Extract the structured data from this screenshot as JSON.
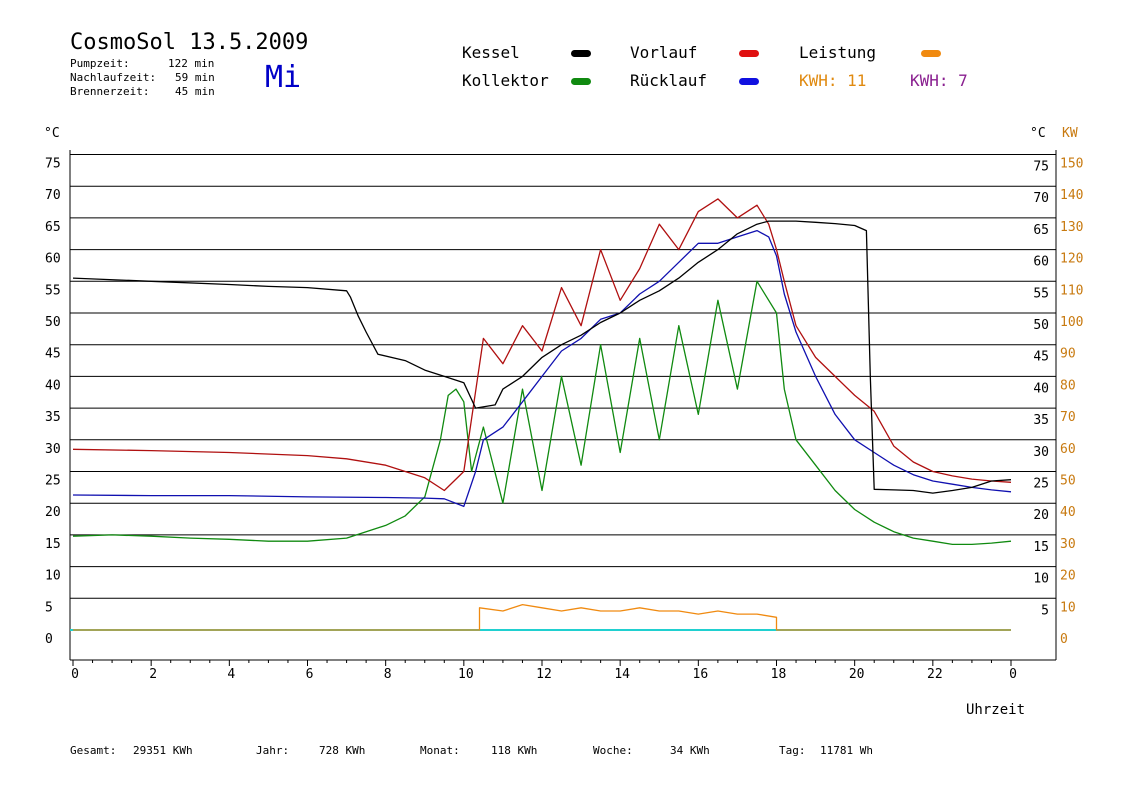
{
  "header": {
    "title": "CosmoSol 13.5.2009",
    "weekday": "Mi",
    "info": [
      {
        "label": "Pumpzeit:",
        "value": "122 min"
      },
      {
        "label": "Nachlaufzeit:",
        "value": "59 min"
      },
      {
        "label": "Brennerzeit:",
        "value": "45 min"
      }
    ]
  },
  "legend": [
    {
      "name": "Kessel",
      "color": "#000000"
    },
    {
      "name": "Vorlauf",
      "color": "#e01010"
    },
    {
      "name": "Leistung",
      "color": "#f08a10"
    },
    {
      "name": "Kollektor",
      "color": "#108a10"
    },
    {
      "name": "Rücklauf",
      "color": "#1010e0"
    }
  ],
  "kwh": [
    {
      "text": "KWH: 11",
      "color": "#e08a10"
    },
    {
      "text": "KWH: 7",
      "color": "#8a2090"
    }
  ],
  "footer": [
    {
      "label": "Gesamt:",
      "value": "29351 KWh"
    },
    {
      "label": "Jahr:",
      "value": "728 KWh"
    },
    {
      "label": "Monat:",
      "value": "118 KWh"
    },
    {
      "label": "Woche:",
      "value": "34 KWh"
    },
    {
      "label": "Tag:",
      "value": "11781 Wh"
    }
  ],
  "chart_data": {
    "type": "line",
    "xlabel": "Uhrzeit",
    "ylabel_left": "°C",
    "ylabel_right_1": "°C",
    "ylabel_right_2": "KW",
    "xlim": [
      0,
      24
    ],
    "ylim": [
      0,
      75
    ],
    "x_ticks": [
      "0",
      "2",
      "4",
      "6",
      "8",
      "10",
      "12",
      "14",
      "16",
      "18",
      "20",
      "22",
      "0"
    ],
    "y_ticks_left": [
      "75",
      "70",
      "65",
      "60",
      "55",
      "50",
      "45",
      "40",
      "35",
      "30",
      "25",
      "20",
      "15",
      "10",
      "5",
      "0"
    ],
    "y_ticks_right_1": [
      "75",
      "70",
      "65",
      "60",
      "55",
      "50",
      "45",
      "40",
      "35",
      "30",
      "25",
      "20",
      "15",
      "10",
      "5"
    ],
    "y_ticks_right_2": [
      "150",
      "140",
      "130",
      "120",
      "110",
      "100",
      "90",
      "80",
      "70",
      "60",
      "50",
      "40",
      "30",
      "20",
      "10",
      "0"
    ],
    "grid": true,
    "series": [
      {
        "name": "Kessel",
        "color": "#000000",
        "x": [
          0,
          2,
          4,
          5,
          6,
          7,
          7.1,
          7.3,
          7.5,
          7.8,
          8.5,
          9,
          9.5,
          10,
          10.3,
          10.8,
          11,
          11.5,
          12,
          12.5,
          13,
          13.5,
          14,
          14.5,
          15,
          15.5,
          16,
          16.5,
          17,
          17.5,
          17.8,
          18,
          18.5,
          19,
          19.5,
          20,
          20.3,
          20.4,
          20.5,
          21,
          21.5,
          22,
          22.5,
          23,
          23.5,
          24
        ],
        "y": [
          55.5,
          55,
          54.5,
          54.2,
          54,
          53.5,
          52.5,
          49.5,
          47,
          43.5,
          42.5,
          41,
          40,
          39,
          35,
          35.5,
          38,
          40,
          43,
          45,
          46.5,
          48.5,
          50,
          52,
          53.5,
          55.5,
          58,
          60,
          62.5,
          64,
          64.5,
          64.5,
          64.5,
          64.3,
          64.1,
          63.8,
          63,
          40,
          22.2,
          22.1,
          22,
          21.6,
          22,
          22.5,
          23.5,
          23.7
        ]
      },
      {
        "name": "Vorlauf",
        "color": "#b01010",
        "x": [
          0,
          2,
          4,
          6,
          7,
          8,
          9,
          9.5,
          10,
          10.5,
          11,
          11.5,
          12,
          12.5,
          13,
          13.5,
          14,
          14.5,
          15,
          15.5,
          16,
          16.5,
          17,
          17.5,
          17.8,
          18,
          18.2,
          18.5,
          19,
          19.5,
          20,
          20.5,
          21,
          21.5,
          22,
          22.5,
          23,
          23.5,
          24
        ],
        "y": [
          28.5,
          28.3,
          28,
          27.5,
          27,
          26,
          24,
          22,
          25,
          46,
          42,
          48,
          44,
          54,
          48,
          60,
          52,
          57,
          64,
          60,
          66,
          68,
          65,
          67,
          64,
          60,
          55,
          48,
          43,
          40,
          37,
          34.5,
          29,
          26.5,
          25,
          24.3,
          23.8,
          23.5,
          23.3
        ]
      },
      {
        "name": "Rücklauf",
        "color": "#1010b0",
        "x": [
          0,
          2,
          4,
          6,
          8,
          9,
          9.5,
          10,
          10.3,
          10.5,
          11,
          11.5,
          12,
          12.5,
          13,
          13.5,
          14,
          14.5,
          15,
          15.5,
          16,
          16.5,
          17,
          17.5,
          17.8,
          18,
          18.2,
          18.5,
          19,
          19.5,
          20,
          20.5,
          21,
          21.5,
          22,
          22.5,
          23,
          23.5,
          24
        ],
        "y": [
          21.3,
          21.2,
          21.2,
          21,
          20.9,
          20.8,
          20.7,
          19.5,
          25,
          30,
          32,
          36,
          40,
          44,
          46,
          49,
          50,
          53,
          55,
          58,
          61,
          61,
          62,
          63,
          62,
          59,
          53,
          47,
          40,
          34,
          30,
          28,
          26,
          24.5,
          23.5,
          23,
          22.5,
          22.1,
          21.8
        ]
      },
      {
        "name": "Kollektor",
        "color": "#108a10",
        "x": [
          0,
          1,
          2,
          3,
          4,
          5,
          6,
          7,
          7.5,
          8,
          8.5,
          9,
          9.4,
          9.6,
          9.8,
          10,
          10.2,
          10.5,
          11,
          11.5,
          12,
          12.5,
          13,
          13.5,
          14,
          14.5,
          15,
          15.5,
          16,
          16.5,
          17,
          17.5,
          18,
          18.2,
          18.5,
          19,
          19.5,
          20,
          20.5,
          21,
          21.5,
          22,
          22.5,
          23,
          23.5,
          24
        ],
        "y": [
          14.8,
          15,
          14.8,
          14.5,
          14.3,
          14,
          14,
          14.5,
          15.5,
          16.5,
          18,
          21,
          30,
          37,
          38,
          36,
          25,
          32,
          20,
          38,
          22,
          40,
          26,
          45,
          28,
          46,
          30,
          48,
          34,
          52,
          38,
          55,
          50,
          38,
          30,
          26,
          22,
          19,
          17,
          15.5,
          14.5,
          14,
          13.5,
          13.5,
          13.7,
          14
        ]
      },
      {
        "name": "Leistung",
        "color": "#f08a10",
        "x": [
          0,
          10.4,
          10.4,
          11,
          11.5,
          12,
          12.5,
          13,
          13.5,
          14,
          14.5,
          15,
          15.5,
          16,
          16.5,
          17,
          17.5,
          18,
          18,
          24
        ],
        "y": [
          0,
          0,
          3.5,
          3,
          4,
          3.5,
          3,
          3.5,
          3,
          3,
          3.5,
          3,
          3,
          2.5,
          3,
          2.5,
          2.5,
          2,
          0,
          0
        ]
      }
    ]
  }
}
